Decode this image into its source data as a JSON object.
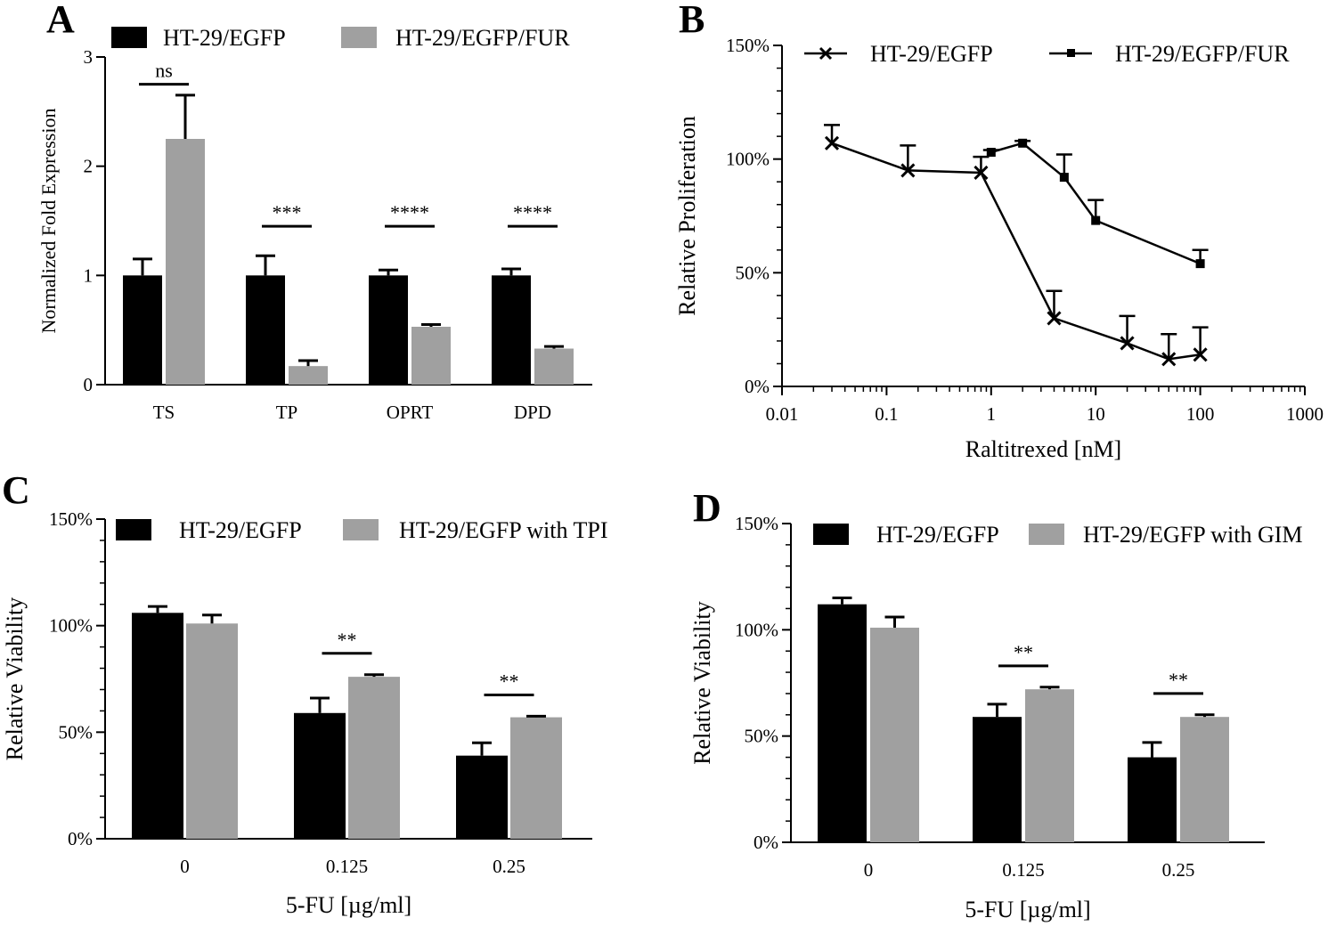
{
  "colors": {
    "black_series": "#000000",
    "gray_series": "#a0a0a0"
  },
  "chart_data": [
    {
      "panel": "A",
      "type": "bar",
      "ylabel": "Normalized Fold  Expression",
      "xlabel": "",
      "ylim": [
        0,
        3
      ],
      "yticks": [
        "0",
        "1",
        "2",
        "3"
      ],
      "categories": [
        "TS",
        "TP",
        "OPRT",
        "DPD"
      ],
      "legend_position": "top",
      "series": [
        {
          "name": "HT-29/EGFP",
          "color": "#000000",
          "values": [
            1.0,
            1.0,
            1.0,
            1.0
          ],
          "errors": [
            0.15,
            0.18,
            0.05,
            0.06
          ]
        },
        {
          "name": "HT-29/EGFP/FUR",
          "color": "#a0a0a0",
          "values": [
            2.25,
            0.17,
            0.53,
            0.33
          ],
          "errors": [
            0.4,
            0.05,
            0.02,
            0.02
          ]
        }
      ],
      "annotations": [
        "ns",
        "***",
        "****",
        "****"
      ]
    },
    {
      "panel": "B",
      "type": "line",
      "ylabel": "Relative Proliferation",
      "xlabel": "Raltitrexed [nM]",
      "xscale": "log",
      "xlim": [
        0.01,
        1000
      ],
      "xticks": [
        "0.01",
        "0.1",
        "1",
        "10",
        "100",
        "1000"
      ],
      "ylim": [
        0,
        150
      ],
      "yticks": [
        "0%",
        "50%",
        "100%",
        "150%"
      ],
      "legend_position": "top",
      "series": [
        {
          "name": "HT-29/EGFP",
          "marker": "x",
          "x": [
            0.03,
            0.16,
            0.8,
            4,
            20,
            50,
            100
          ],
          "values": [
            107,
            95,
            94,
            30,
            19,
            12,
            14
          ],
          "errors": [
            8,
            11,
            7,
            12,
            12,
            11,
            12
          ]
        },
        {
          "name": "HT-29/EGFP/FUR",
          "marker": "square",
          "x": [
            1,
            2,
            5,
            10,
            100
          ],
          "values": [
            103,
            107,
            92,
            73,
            54
          ],
          "errors": [
            1,
            1,
            10,
            9,
            6
          ]
        }
      ]
    },
    {
      "panel": "C",
      "type": "bar",
      "ylabel": "Relative Viability",
      "xlabel": "5-FU [µg/ml]",
      "ylim": [
        0,
        150
      ],
      "yticks": [
        "0%",
        "50%",
        "100%",
        "150%"
      ],
      "categories": [
        "0",
        "0.125",
        "0.25"
      ],
      "legend_position": "top",
      "series": [
        {
          "name": "HT-29/EGFP",
          "color": "#000000",
          "values": [
            106,
            59,
            39
          ],
          "errors": [
            3,
            7,
            6
          ]
        },
        {
          "name": "HT-29/EGFP with TPI",
          "color": "#a0a0a0",
          "values": [
            101,
            76,
            57
          ],
          "errors": [
            4,
            1,
            0.5
          ]
        }
      ],
      "annotations": [
        "",
        "**",
        "**"
      ]
    },
    {
      "panel": "D",
      "type": "bar",
      "ylabel": "Relative Viability",
      "xlabel": "5-FU [µg/ml]",
      "ylim": [
        0,
        150
      ],
      "yticks": [
        "0%",
        "50%",
        "100%",
        "150%"
      ],
      "categories": [
        "0",
        "0.125",
        "0.25"
      ],
      "legend_position": "top",
      "series": [
        {
          "name": "HT-29/EGFP",
          "color": "#000000",
          "values": [
            112,
            59,
            40
          ],
          "errors": [
            3,
            6,
            7
          ]
        },
        {
          "name": "HT-29/EGFP with GIM",
          "color": "#a0a0a0",
          "values": [
            101,
            72,
            59
          ],
          "errors": [
            5,
            1,
            1
          ]
        }
      ],
      "annotations": [
        "",
        "**",
        "**"
      ]
    }
  ]
}
